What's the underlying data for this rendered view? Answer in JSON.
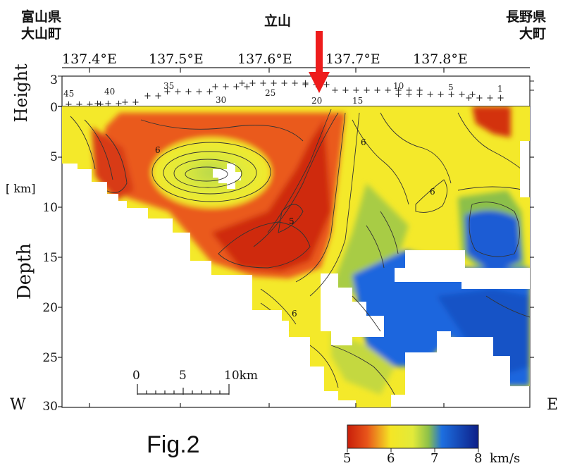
{
  "places": {
    "left": [
      "富山県",
      "大山町"
    ],
    "center": "立山",
    "right": [
      "長野県",
      "大町"
    ]
  },
  "longitudes": [
    "137.4°E",
    "137.5°E",
    "137.6°E",
    "137.7°E",
    "137.8°E"
  ],
  "axis": {
    "height_label": "Height",
    "depth_label": "Depth",
    "unit_label": "[ km]",
    "height_ticks": [
      "3",
      "0"
    ],
    "depth_ticks": [
      "5",
      "10",
      "15",
      "20",
      "25",
      "30"
    ],
    "west": "W",
    "east": "E"
  },
  "station_numbers": [
    "45",
    "40",
    "35",
    "30",
    "25",
    "20",
    "15",
    "10",
    "5",
    "1"
  ],
  "contour_labels": [
    "6",
    "6",
    "5",
    "6",
    "6"
  ],
  "scale_bar": {
    "labels": [
      "0",
      "5",
      "10km"
    ]
  },
  "colorbar": {
    "ticks": [
      "5",
      "6",
      "7",
      "8"
    ],
    "unit": "km/s",
    "colors": [
      "#c81e0a",
      "#e8551a",
      "#f5e625",
      "#e2ea3a",
      "#8cc04a",
      "#1d6fe0",
      "#0d1f88"
    ]
  },
  "figure_label": "Fig.2",
  "marker": {
    "color": "#ee1c1c"
  }
}
